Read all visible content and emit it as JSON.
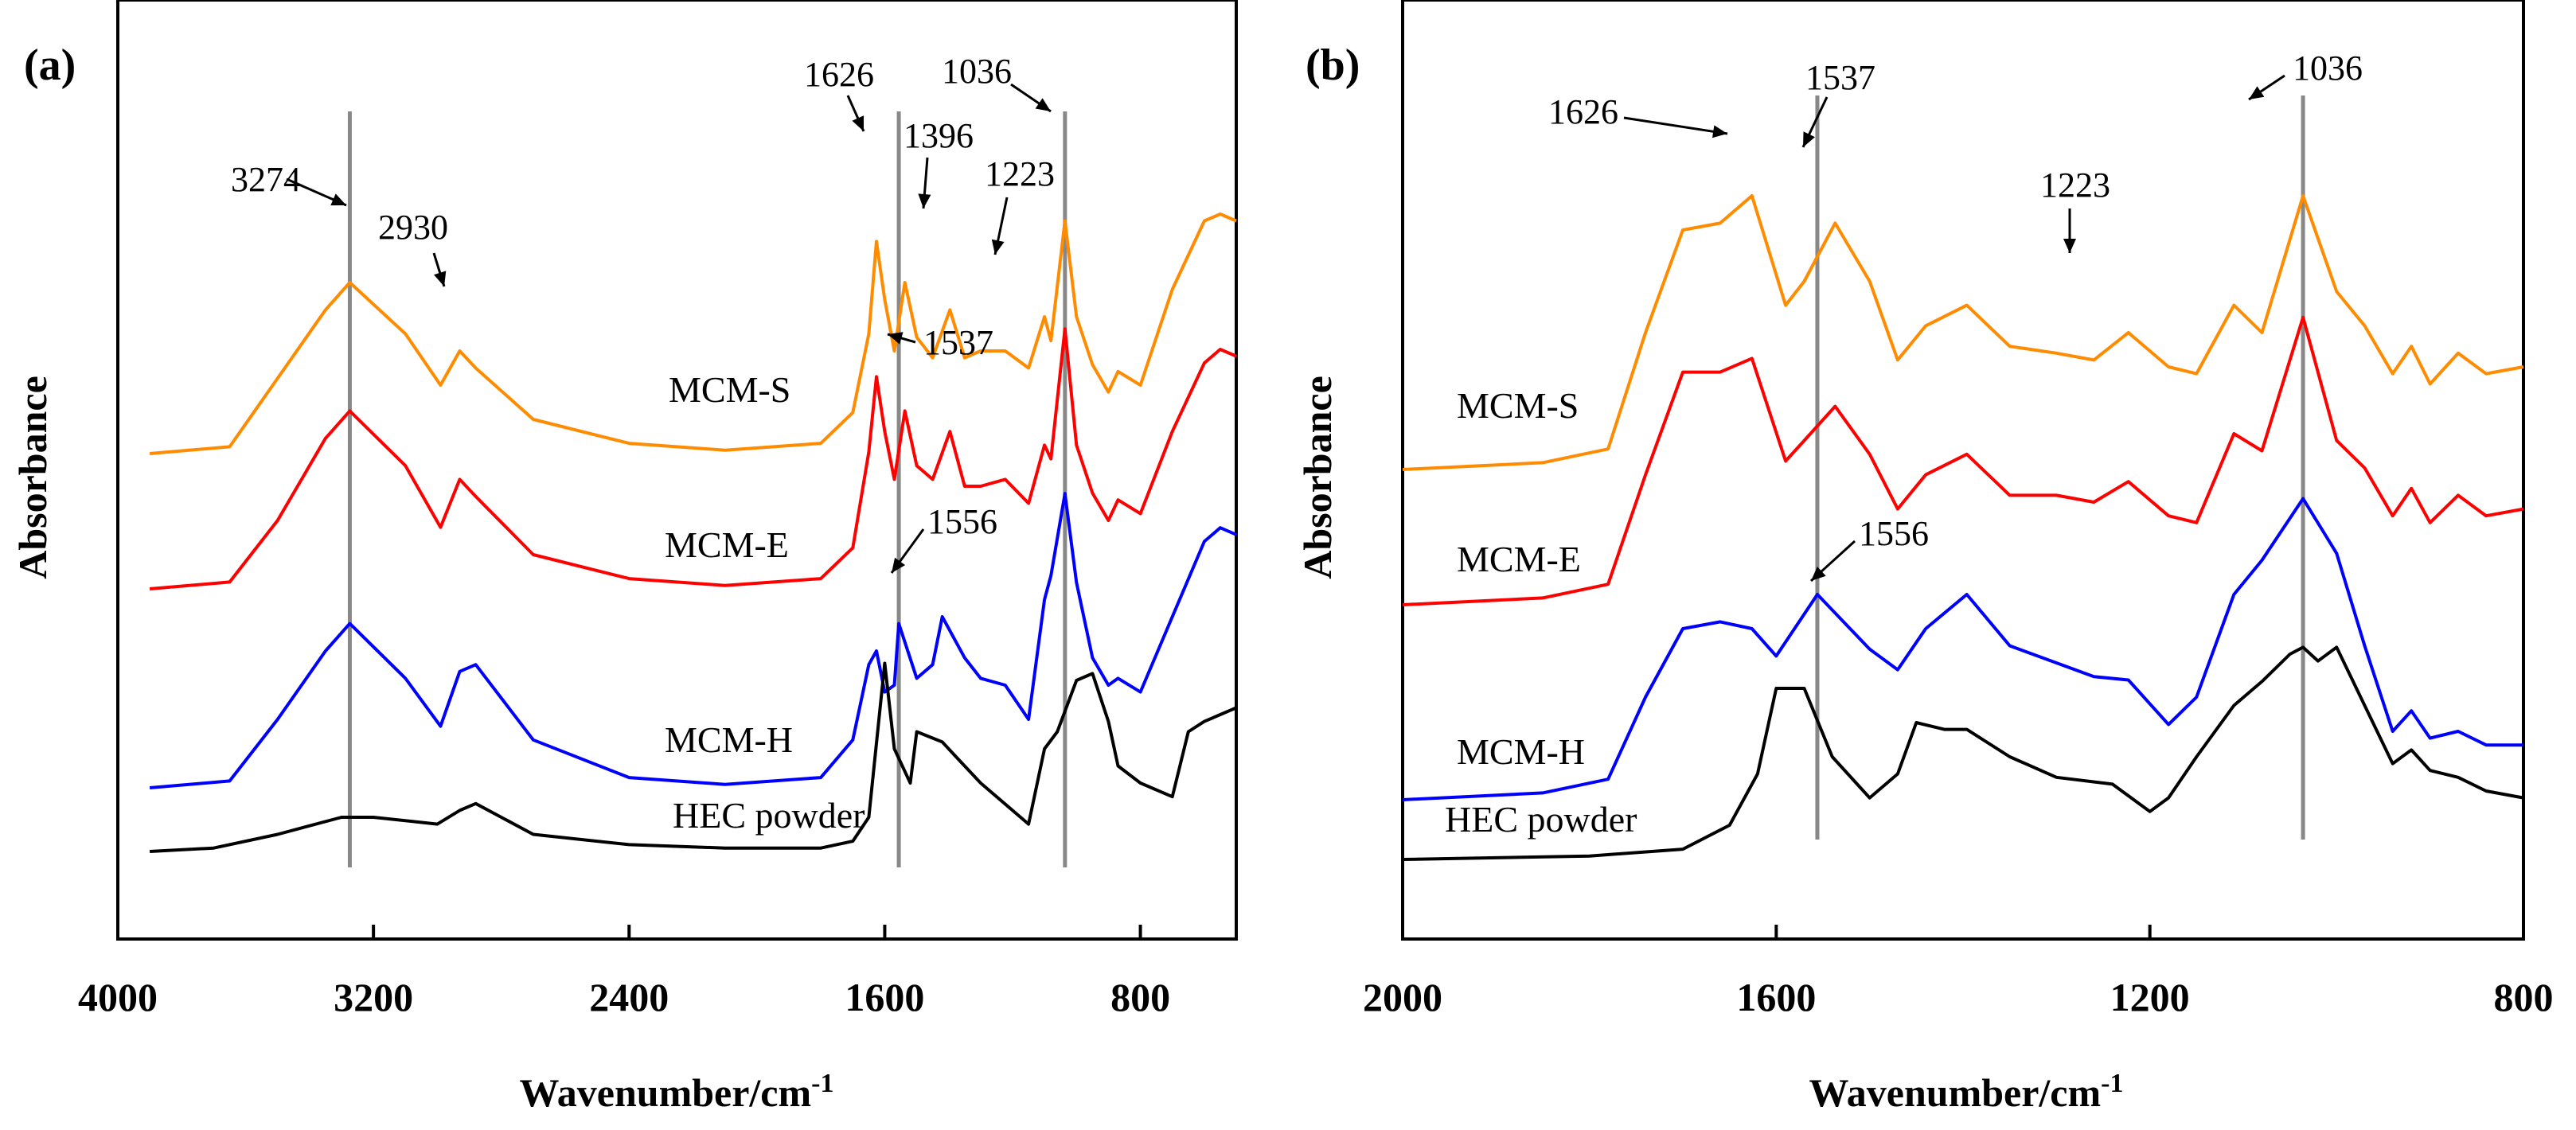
{
  "chart_data": [
    {
      "type": "line",
      "panel_label": "(a)",
      "xlabel": "Wavenumber/cm",
      "xlabel_sup": "-1",
      "ylabel": "Absorbance",
      "xlim": [
        4000,
        500
      ],
      "x_ticks": [
        4000,
        3200,
        2400,
        1600,
        800
      ],
      "x_tick_labels": [
        "4000",
        "3200",
        "2400",
        "1600",
        "800"
      ],
      "y_ticks_shown": false,
      "grid": false,
      "legend": "none",
      "reference_lines": [
        3274,
        1556,
        1036
      ],
      "series": [
        {
          "name": "MCM-S",
          "color": "#ff8c00",
          "x": [
            3900,
            3650,
            3500,
            3350,
            3274,
            3100,
            2990,
            2930,
            2880,
            2700,
            2400,
            2100,
            1800,
            1700,
            1650,
            1626,
            1600,
            1570,
            1537,
            1500,
            1450,
            1396,
            1350,
            1300,
            1223,
            1150,
            1100,
            1080,
            1036,
            1000,
            950,
            900,
            870,
            800,
            700,
            600,
            550,
            500
          ],
          "y": [
            0.0,
            0.02,
            0.22,
            0.42,
            0.5,
            0.35,
            0.2,
            0.3,
            0.25,
            0.1,
            0.03,
            0.01,
            0.03,
            0.12,
            0.35,
            0.62,
            0.45,
            0.3,
            0.5,
            0.34,
            0.28,
            0.42,
            0.28,
            0.3,
            0.3,
            0.25,
            0.4,
            0.33,
            0.68,
            0.4,
            0.26,
            0.18,
            0.24,
            0.2,
            0.48,
            0.68,
            0.7,
            0.68
          ]
        },
        {
          "name": "MCM-E",
          "color": "#ff0000",
          "x": [
            3900,
            3650,
            3500,
            3350,
            3274,
            3100,
            2990,
            2930,
            2880,
            2700,
            2400,
            2100,
            1800,
            1700,
            1650,
            1626,
            1600,
            1570,
            1537,
            1500,
            1450,
            1396,
            1350,
            1300,
            1223,
            1150,
            1100,
            1080,
            1036,
            1000,
            950,
            900,
            870,
            800,
            700,
            600,
            550,
            500
          ],
          "y": [
            0.0,
            0.02,
            0.2,
            0.44,
            0.52,
            0.36,
            0.18,
            0.32,
            0.27,
            0.1,
            0.03,
            0.01,
            0.03,
            0.12,
            0.4,
            0.62,
            0.46,
            0.32,
            0.52,
            0.36,
            0.32,
            0.46,
            0.3,
            0.3,
            0.32,
            0.25,
            0.42,
            0.38,
            0.76,
            0.42,
            0.28,
            0.2,
            0.26,
            0.22,
            0.46,
            0.66,
            0.7,
            0.68
          ]
        },
        {
          "name": "MCM-H",
          "color": "#0000ff",
          "x": [
            3900,
            3650,
            3500,
            3350,
            3274,
            3100,
            2990,
            2930,
            2880,
            2700,
            2400,
            2100,
            1800,
            1700,
            1650,
            1626,
            1600,
            1570,
            1556,
            1500,
            1450,
            1420,
            1350,
            1300,
            1223,
            1150,
            1100,
            1080,
            1036,
            1000,
            950,
            900,
            870,
            800,
            700,
            600,
            550,
            500
          ],
          "y": [
            0.0,
            0.02,
            0.2,
            0.4,
            0.48,
            0.32,
            0.18,
            0.34,
            0.36,
            0.14,
            0.03,
            0.01,
            0.03,
            0.14,
            0.36,
            0.4,
            0.28,
            0.3,
            0.48,
            0.32,
            0.36,
            0.5,
            0.38,
            0.32,
            0.3,
            0.2,
            0.55,
            0.62,
            0.86,
            0.6,
            0.38,
            0.3,
            0.32,
            0.28,
            0.5,
            0.72,
            0.76,
            0.74
          ]
        },
        {
          "name": "HEC powder",
          "color": "#000000",
          "x": [
            3900,
            3700,
            3500,
            3300,
            3200,
            3000,
            2930,
            2880,
            2700,
            2400,
            2100,
            1800,
            1700,
            1650,
            1600,
            1570,
            1520,
            1500,
            1420,
            1380,
            1300,
            1200,
            1150,
            1100,
            1060,
            1000,
            950,
            900,
            870,
            800,
            700,
            650,
            600,
            550,
            500
          ],
          "y": [
            0.0,
            0.01,
            0.05,
            0.1,
            0.1,
            0.08,
            0.12,
            0.14,
            0.05,
            0.02,
            0.01,
            0.01,
            0.03,
            0.1,
            0.55,
            0.3,
            0.2,
            0.35,
            0.32,
            0.28,
            0.2,
            0.12,
            0.08,
            0.3,
            0.35,
            0.5,
            0.52,
            0.38,
            0.25,
            0.2,
            0.16,
            0.35,
            0.38,
            0.4,
            0.42
          ]
        }
      ],
      "annotations": [
        {
          "text": "3274"
        },
        {
          "text": "2930"
        },
        {
          "text": "1626"
        },
        {
          "text": "1396"
        },
        {
          "text": "1036"
        },
        {
          "text": "1223"
        },
        {
          "text": "1537"
        },
        {
          "text": "1556"
        }
      ]
    },
    {
      "type": "line",
      "panel_label": "(b)",
      "xlabel": "Wavenumber/cm",
      "xlabel_sup": "-1",
      "ylabel": "Absorbance",
      "xlim": [
        2000,
        800
      ],
      "x_ticks": [
        2000,
        1600,
        1200,
        800
      ],
      "x_tick_labels": [
        "2000",
        "1600",
        "1200",
        "800"
      ],
      "y_ticks_shown": false,
      "grid": false,
      "legend": "none",
      "reference_lines": [
        1556,
        1036
      ],
      "series": [
        {
          "name": "MCM-S",
          "color": "#ff8c00",
          "x": [
            2000,
            1850,
            1780,
            1740,
            1700,
            1660,
            1626,
            1590,
            1570,
            1537,
            1500,
            1470,
            1440,
            1396,
            1350,
            1300,
            1260,
            1223,
            1180,
            1150,
            1110,
            1080,
            1036,
            1000,
            970,
            940,
            920,
            900,
            870,
            840,
            800
          ],
          "y": [
            0.0,
            0.02,
            0.06,
            0.4,
            0.7,
            0.72,
            0.8,
            0.48,
            0.55,
            0.72,
            0.55,
            0.32,
            0.42,
            0.48,
            0.36,
            0.34,
            0.32,
            0.4,
            0.3,
            0.28,
            0.48,
            0.4,
            0.8,
            0.52,
            0.42,
            0.28,
            0.36,
            0.25,
            0.34,
            0.28,
            0.3
          ]
        },
        {
          "name": "MCM-E",
          "color": "#ff0000",
          "x": [
            2000,
            1850,
            1780,
            1740,
            1700,
            1660,
            1626,
            1590,
            1570,
            1537,
            1500,
            1470,
            1440,
            1396,
            1350,
            1300,
            1260,
            1223,
            1180,
            1150,
            1110,
            1080,
            1036,
            1000,
            970,
            940,
            920,
            900,
            870,
            840,
            800
          ],
          "y": [
            0.0,
            0.02,
            0.06,
            0.38,
            0.68,
            0.68,
            0.72,
            0.42,
            0.48,
            0.58,
            0.44,
            0.28,
            0.38,
            0.44,
            0.32,
            0.32,
            0.3,
            0.36,
            0.26,
            0.24,
            0.5,
            0.45,
            0.84,
            0.48,
            0.4,
            0.26,
            0.34,
            0.24,
            0.32,
            0.26,
            0.28
          ]
        },
        {
          "name": "MCM-H",
          "color": "#0000ff",
          "x": [
            2000,
            1850,
            1780,
            1740,
            1700,
            1660,
            1626,
            1600,
            1556,
            1500,
            1470,
            1440,
            1396,
            1350,
            1300,
            1260,
            1223,
            1180,
            1150,
            1110,
            1080,
            1036,
            1000,
            970,
            940,
            920,
            900,
            870,
            840,
            800
          ],
          "y": [
            0.0,
            0.02,
            0.06,
            0.3,
            0.5,
            0.52,
            0.5,
            0.42,
            0.6,
            0.44,
            0.38,
            0.5,
            0.6,
            0.45,
            0.4,
            0.36,
            0.35,
            0.22,
            0.3,
            0.6,
            0.7,
            0.88,
            0.72,
            0.45,
            0.2,
            0.26,
            0.18,
            0.2,
            0.16,
            0.16
          ]
        },
        {
          "name": "HEC powder",
          "color": "#000000",
          "x": [
            2000,
            1800,
            1700,
            1650,
            1620,
            1600,
            1570,
            1540,
            1500,
            1470,
            1450,
            1420,
            1396,
            1350,
            1300,
            1240,
            1200,
            1180,
            1150,
            1110,
            1080,
            1050,
            1036,
            1020,
            1000,
            970,
            940,
            920,
            900,
            870,
            840,
            800
          ],
          "y": [
            0.0,
            0.01,
            0.03,
            0.1,
            0.25,
            0.5,
            0.5,
            0.3,
            0.18,
            0.25,
            0.4,
            0.38,
            0.38,
            0.3,
            0.24,
            0.22,
            0.14,
            0.18,
            0.3,
            0.45,
            0.52,
            0.6,
            0.62,
            0.58,
            0.62,
            0.45,
            0.28,
            0.32,
            0.26,
            0.24,
            0.2,
            0.18
          ]
        }
      ],
      "annotations": [
        {
          "text": "1626"
        },
        {
          "text": "1537"
        },
        {
          "text": "1036"
        },
        {
          "text": "1223"
        },
        {
          "text": "1556"
        }
      ]
    }
  ]
}
